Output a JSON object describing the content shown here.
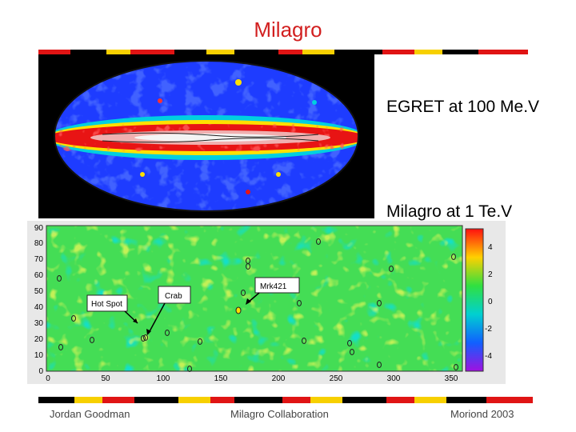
{
  "slide": {
    "title": "Milagro",
    "egret_label": "EGRET at 100 Me.V",
    "milagro_label": "Milagro at 1 Te.V"
  },
  "skymap": {
    "y_ticks": [
      "90",
      "80",
      "70",
      "60",
      "50",
      "40",
      "30",
      "20",
      "10",
      "0"
    ],
    "x_ticks": [
      "0",
      "50",
      "100",
      "150",
      "200",
      "250",
      "300",
      "350"
    ],
    "colorbar_ticks": [
      "4",
      "2",
      "0",
      "-2",
      "-4"
    ],
    "annotations": {
      "hot_spot": "Hot Spot",
      "crab": "Crab",
      "mrk421": "Mrk421"
    }
  },
  "footer": {
    "left": "Jordan Goodman",
    "center": "Milagro Collaboration",
    "right": "Moriond 2003"
  },
  "colors": {
    "title": "#d21f1f",
    "stripe_black": "#000000",
    "stripe_red": "#e01414",
    "stripe_yellow": "#f7d000"
  }
}
